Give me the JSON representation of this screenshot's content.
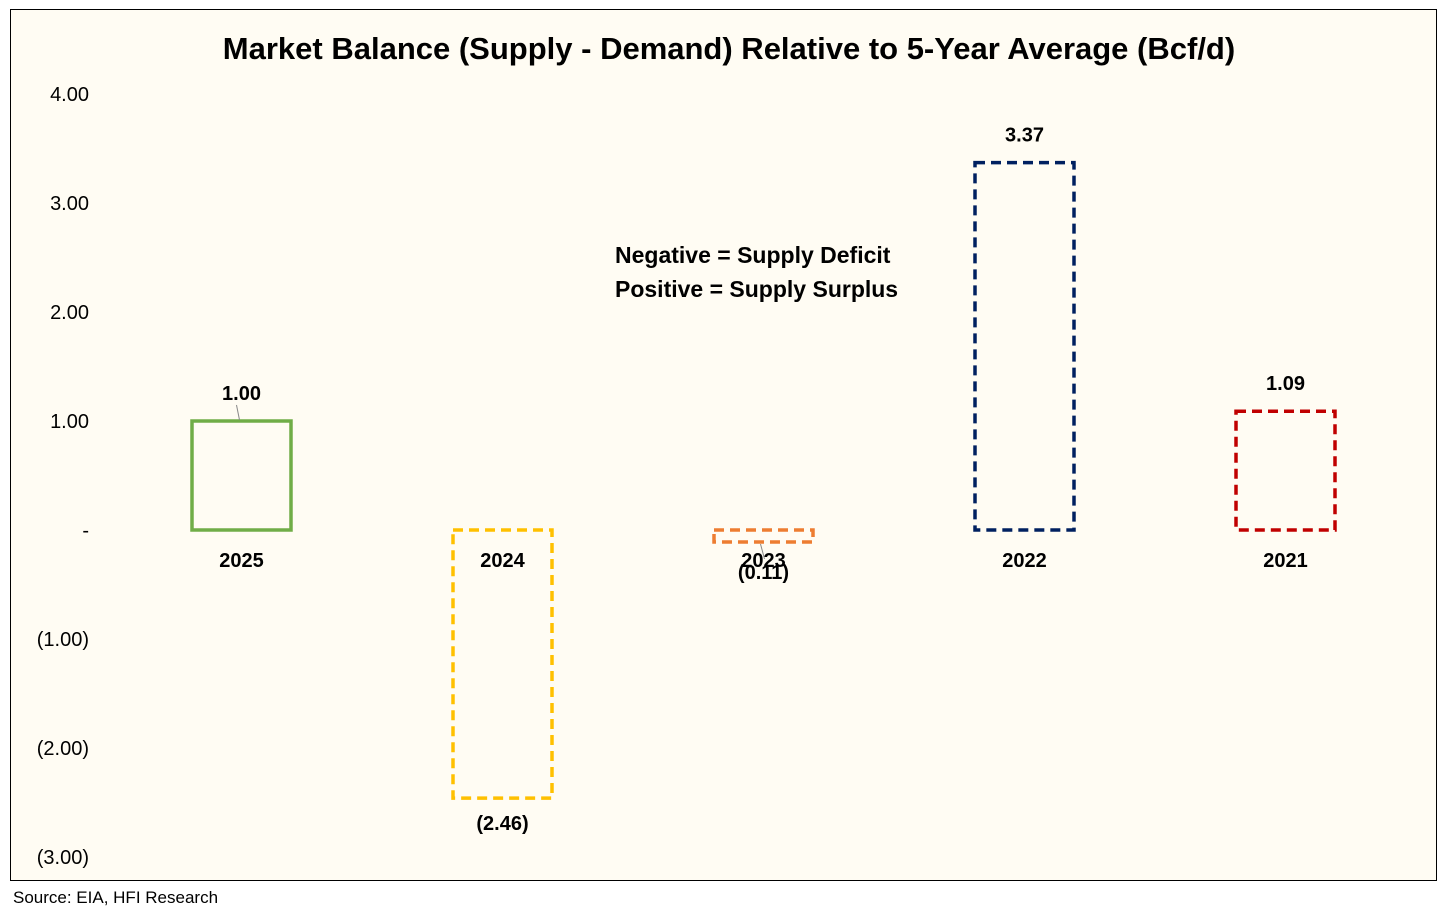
{
  "chart_data": {
    "type": "bar",
    "title": "Market Balance (Supply - Demand) Relative to 5-Year Average (Bcf/d)",
    "categories": [
      "2025",
      "2024",
      "2023",
      "2022",
      "2021"
    ],
    "values": [
      1.0,
      -2.46,
      -0.11,
      3.37,
      1.09
    ],
    "data_labels": [
      "1.00",
      "(2.46)",
      "(0.11)",
      "3.37",
      "1.09"
    ],
    "bar_colors": [
      "#70ad47",
      "#ffc000",
      "#ed7d31",
      "#002060",
      "#c00000"
    ],
    "bar_styles": [
      "solid",
      "dashed",
      "dashed",
      "dashed",
      "dashed"
    ],
    "ylim": [
      -3,
      4
    ],
    "yticks": [
      4,
      3,
      2,
      1,
      0,
      -1,
      -2,
      -3
    ],
    "ytick_labels": [
      "4.00",
      "3.00",
      "2.00",
      "1.00",
      "-",
      "(1.00)",
      "(2.00)",
      "(3.00)"
    ],
    "xlabel": "",
    "ylabel": "",
    "grid": false,
    "annotation_lines": [
      "Negative = Supply Deficit",
      "Positive = Supply Surplus"
    ]
  },
  "source": "Source: EIA, HFI Research"
}
